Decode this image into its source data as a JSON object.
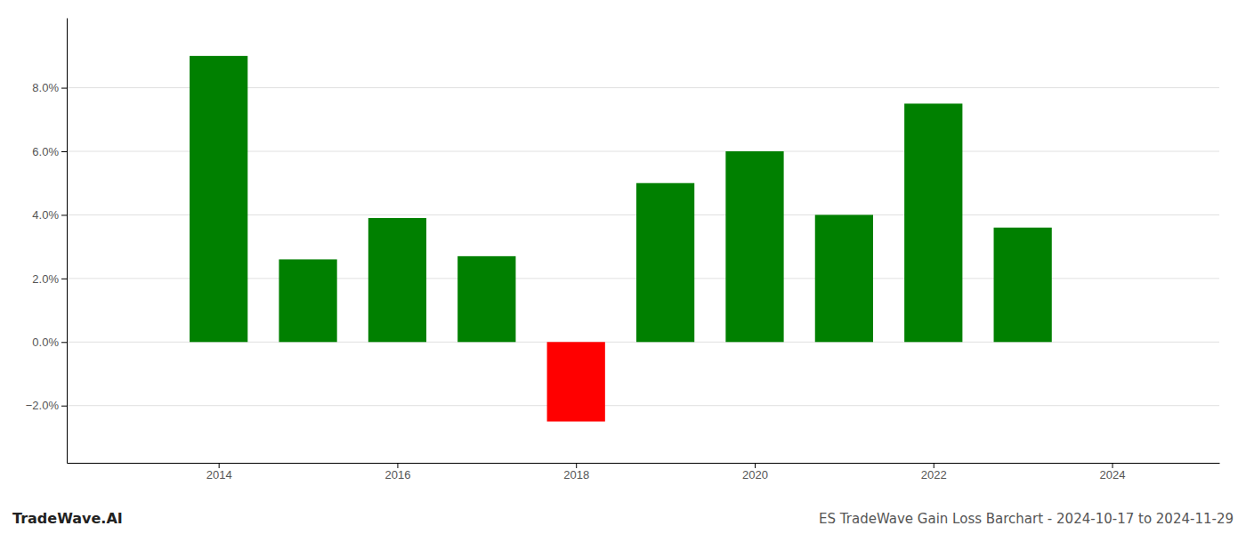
{
  "chart_data": {
    "type": "bar",
    "title": "ES TradeWave Gain Loss Barchart - 2024-10-17 to 2024-11-29",
    "annotations": [
      "TradeWave.AI"
    ],
    "x": [
      2014,
      2015,
      2016,
      2017,
      2018,
      2019,
      2020,
      2021,
      2022,
      2023
    ],
    "values": [
      0.09,
      0.026,
      0.039,
      0.027,
      -0.025,
      0.05,
      0.06,
      0.04,
      0.075,
      0.036
    ],
    "colors": [
      "#008000",
      "#008000",
      "#008000",
      "#008000",
      "#ff0000",
      "#008000",
      "#008000",
      "#008000",
      "#008000",
      "#008000"
    ],
    "xlim": [
      2012.3,
      2025.2
    ],
    "ylim": [
      -0.038,
      0.102
    ],
    "xticks": [
      2014,
      2016,
      2018,
      2020,
      2022,
      2024
    ],
    "yticks": [
      {
        "value": -0.02,
        "label": "−2.0%"
      },
      {
        "value": 0.0,
        "label": "0.0%"
      },
      {
        "value": 0.02,
        "label": "2.0%"
      },
      {
        "value": 0.04,
        "label": "4.0%"
      },
      {
        "value": 0.06,
        "label": "6.0%"
      },
      {
        "value": 0.08,
        "label": "8.0%"
      }
    ],
    "grid": true
  }
}
